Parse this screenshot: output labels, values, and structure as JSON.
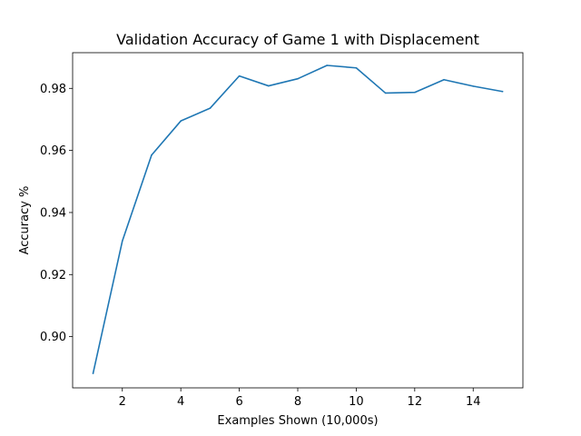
{
  "chart_data": {
    "type": "line",
    "title": "Validation Accuracy of Game 1 with Displacement",
    "xlabel": "Examples Shown (10,000s)",
    "ylabel": "Accuracy %",
    "xlim": [
      0.3,
      15.7
    ],
    "ylim": [
      0.8835,
      0.9915
    ],
    "xticks": [
      2,
      4,
      6,
      8,
      10,
      12,
      14
    ],
    "xtick_labels": [
      "2",
      "4",
      "6",
      "8",
      "10",
      "12",
      "14"
    ],
    "yticks": [
      0.9,
      0.92,
      0.94,
      0.96,
      0.98
    ],
    "ytick_labels": [
      "0.90",
      "0.92",
      "0.94",
      "0.96",
      "0.98"
    ],
    "grid": false,
    "colors": {
      "line": "#1f77b4",
      "axes": "#000000"
    },
    "series": [
      {
        "x": [
          1,
          2,
          3,
          4,
          5,
          6,
          7,
          8,
          9,
          10,
          11,
          12,
          13,
          14,
          15
        ],
        "values": [
          0.8882,
          0.9308,
          0.9585,
          0.9695,
          0.9736,
          0.984,
          0.9808,
          0.9831,
          0.9874,
          0.9866,
          0.9785,
          0.9787,
          0.9828,
          0.9807,
          0.979
        ]
      }
    ]
  }
}
